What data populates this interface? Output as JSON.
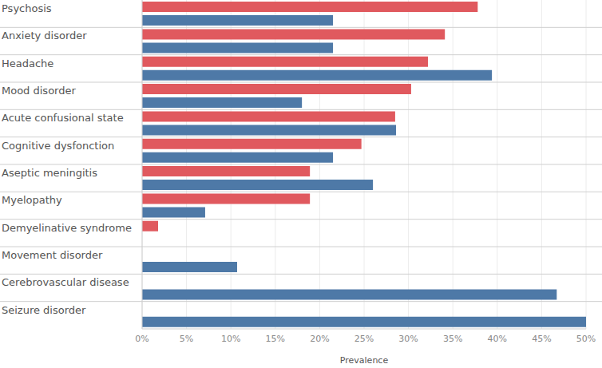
{
  "chart_data": {
    "type": "bar",
    "orientation": "horizontal",
    "x_label": "Prevalence",
    "categories": [
      "Psychosis",
      "Anxiety disorder",
      "Headache",
      "Mood disorder",
      "Acute confusional state",
      "Cognitive dysfonction",
      "Aseptic meningitis",
      "Myelopathy",
      "Demyelinative syndrome",
      "Movement disorder",
      "Cerebrovascular disease",
      "Seizure disorder"
    ],
    "series": [
      {
        "color": "#e0595e",
        "values": [
          37.8,
          34.1,
          32.2,
          30.3,
          28.5,
          24.7,
          18.9,
          18.9,
          1.8,
          0,
          0,
          0
        ]
      },
      {
        "color": "#4e79a7",
        "values": [
          21.5,
          21.5,
          39.4,
          18.0,
          28.6,
          21.5,
          26.0,
          7.1,
          0,
          10.7,
          46.7,
          50
        ]
      }
    ],
    "xlim": [
      0,
      50
    ],
    "xticks": [
      {
        "value": 0,
        "label": "0%"
      },
      {
        "value": 5,
        "label": "5%"
      },
      {
        "value": 10,
        "label": "10%"
      },
      {
        "value": 15,
        "label": "15%"
      },
      {
        "value": 20,
        "label": "20%"
      },
      {
        "value": 25,
        "label": "25%"
      },
      {
        "value": 30,
        "label": "30%"
      },
      {
        "value": 35,
        "label": "35%"
      },
      {
        "value": 40,
        "label": "40%"
      },
      {
        "value": 45,
        "label": "45%"
      },
      {
        "value": 50,
        "label": "50%"
      }
    ],
    "grid": true
  }
}
